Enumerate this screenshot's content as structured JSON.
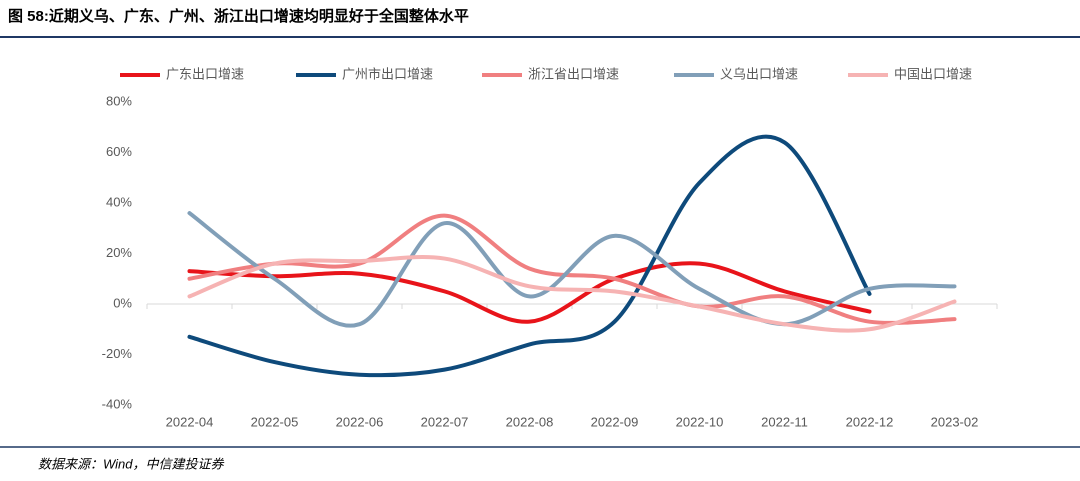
{
  "chart_data": {
    "type": "line",
    "title": "图 58:近期义乌、广东、广州、浙江出口增速均明显好于全国整体水平",
    "source": "数据来源：Wind，中信建投证券",
    "categories": [
      "2022-04",
      "2022-05",
      "2022-06",
      "2022-07",
      "2022-08",
      "2022-09",
      "2022-10",
      "2022-11",
      "2022-12",
      "2023-02"
    ],
    "series": [
      {
        "name": "广东出口增速",
        "color": "#e8141a",
        "values": [
          13,
          11,
          12,
          5,
          -7,
          10,
          16,
          5,
          -3,
          null
        ]
      },
      {
        "name": "广州市出口增速",
        "color": "#0e4a7b",
        "values": [
          -13,
          -23,
          -28,
          -26,
          -16,
          -7,
          48,
          64,
          4,
          null
        ]
      },
      {
        "name": "浙江省出口增速",
        "color": "#f07f80",
        "values": [
          10,
          16,
          16,
          35,
          14,
          10,
          -1,
          3,
          -7,
          -6
        ]
      },
      {
        "name": "义乌出口增速",
        "color": "#819fb8",
        "values": [
          36,
          10,
          -8,
          32,
          3,
          27,
          6,
          -8,
          6,
          7
        ]
      },
      {
        "name": "中国出口增速",
        "color": "#f6b3b3",
        "values": [
          3,
          16,
          17,
          18,
          7,
          5,
          -1,
          -8,
          -10,
          1
        ]
      }
    ],
    "ylim": [
      -40,
      80
    ],
    "yticks": [
      {
        "value": -40,
        "label": "-40%"
      },
      {
        "value": -20,
        "label": "-20%"
      },
      {
        "value": 0,
        "label": "0%"
      },
      {
        "value": 20,
        "label": "20%"
      },
      {
        "value": 40,
        "label": "40%"
      },
      {
        "value": 60,
        "label": "60%"
      },
      {
        "value": 80,
        "label": "80%"
      }
    ],
    "grid": false,
    "smooth": true,
    "legend": "top"
  }
}
